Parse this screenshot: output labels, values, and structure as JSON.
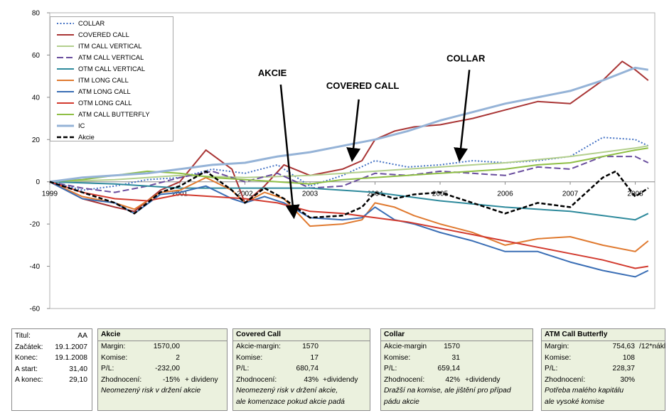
{
  "chart_data": {
    "type": "line",
    "ylim": [
      -60,
      80
    ],
    "yticks": [
      -60,
      -40,
      -20,
      0,
      20,
      40,
      60,
      80
    ],
    "x_range": [
      1999.0,
      2008.3
    ],
    "xtick_labels": [
      "1999",
      "2001",
      "2002",
      "2003",
      "2004",
      "2005",
      "2006",
      "2007",
      "2008"
    ],
    "xtick_values": [
      1999.0,
      2001.0,
      2002.0,
      2003.0,
      2004.0,
      2005.0,
      2006.0,
      2007.0,
      2008.0
    ],
    "grid": false,
    "legend_position": "top-left",
    "series": [
      {
        "name": "COLLAR",
        "color": "#4472c4",
        "dash": "2,2.5",
        "width": 2,
        "points": [
          [
            1999.0,
            0
          ],
          [
            1999.5,
            -4
          ],
          [
            2000.0,
            -2
          ],
          [
            2000.5,
            1
          ],
          [
            2001.0,
            2
          ],
          [
            2001.5,
            6
          ],
          [
            2002.0,
            4
          ],
          [
            2002.5,
            8
          ],
          [
            2003.0,
            -2
          ],
          [
            2003.5,
            3
          ],
          [
            2004.0,
            10
          ],
          [
            2004.5,
            7
          ],
          [
            2005.0,
            8
          ],
          [
            2005.5,
            10
          ],
          [
            2006.0,
            9
          ],
          [
            2006.5,
            10
          ],
          [
            2007.0,
            12
          ],
          [
            2007.5,
            21
          ],
          [
            2008.0,
            20
          ],
          [
            2008.2,
            17
          ]
        ]
      },
      {
        "name": "COVERED CALL",
        "color": "#a93535",
        "dash": "",
        "width": 2,
        "points": [
          [
            1999.0,
            0
          ],
          [
            1999.5,
            -8
          ],
          [
            2000.0,
            -12
          ],
          [
            2000.3,
            -14
          ],
          [
            2000.7,
            -4
          ],
          [
            2001.0,
            0
          ],
          [
            2001.4,
            15
          ],
          [
            2001.8,
            6
          ],
          [
            2002.0,
            -10
          ],
          [
            2002.3,
            -2
          ],
          [
            2002.6,
            8
          ],
          [
            2003.0,
            3
          ],
          [
            2003.5,
            6
          ],
          [
            2003.8,
            10
          ],
          [
            2004.0,
            20
          ],
          [
            2004.3,
            24
          ],
          [
            2004.6,
            26
          ],
          [
            2005.0,
            27
          ],
          [
            2005.5,
            30
          ],
          [
            2006.0,
            34
          ],
          [
            2006.5,
            38
          ],
          [
            2007.0,
            37
          ],
          [
            2007.5,
            48
          ],
          [
            2007.8,
            57
          ],
          [
            2008.0,
            53
          ],
          [
            2008.2,
            48
          ]
        ]
      },
      {
        "name": "ITM CALL VERTICAL",
        "color": "#b3cf8d",
        "dash": "",
        "width": 2,
        "points": [
          [
            1999.0,
            0
          ],
          [
            2000.0,
            1
          ],
          [
            2001.0,
            3
          ],
          [
            2002.0,
            2
          ],
          [
            2003.0,
            3
          ],
          [
            2004.0,
            5
          ],
          [
            2005.0,
            7
          ],
          [
            2006.0,
            9
          ],
          [
            2007.0,
            12
          ],
          [
            2008.0,
            16
          ],
          [
            2008.2,
            17
          ]
        ]
      },
      {
        "name": "ATM CALL VERTICAL",
        "color": "#6a4e9e",
        "dash": "9,4",
        "width": 2,
        "points": [
          [
            1999.0,
            0
          ],
          [
            1999.5,
            -3
          ],
          [
            2000.0,
            -5
          ],
          [
            2000.5,
            -2
          ],
          [
            2001.0,
            2
          ],
          [
            2001.5,
            5
          ],
          [
            2002.0,
            0
          ],
          [
            2002.5,
            4
          ],
          [
            2003.0,
            -3
          ],
          [
            2003.5,
            -2
          ],
          [
            2004.0,
            4
          ],
          [
            2004.5,
            3
          ],
          [
            2005.0,
            5
          ],
          [
            2005.5,
            4
          ],
          [
            2006.0,
            3
          ],
          [
            2006.5,
            7
          ],
          [
            2007.0,
            6
          ],
          [
            2007.5,
            12
          ],
          [
            2008.0,
            12
          ],
          [
            2008.2,
            9
          ]
        ]
      },
      {
        "name": "OTM CALL VERTICAL",
        "color": "#2e8a9c",
        "dash": "",
        "width": 2,
        "points": [
          [
            1999.0,
            0
          ],
          [
            2000.0,
            -1
          ],
          [
            2001.0,
            -3
          ],
          [
            2002.0,
            -3
          ],
          [
            2003.0,
            -3
          ],
          [
            2004.0,
            -5
          ],
          [
            2005.0,
            -9
          ],
          [
            2006.0,
            -12
          ],
          [
            2007.0,
            -14
          ],
          [
            2008.0,
            -18
          ],
          [
            2008.2,
            -15
          ]
        ]
      },
      {
        "name": "ITM LONG CALL",
        "color": "#e07a30",
        "dash": "",
        "width": 2,
        "points": [
          [
            1999.0,
            0
          ],
          [
            1999.5,
            -7
          ],
          [
            2000.0,
            -10
          ],
          [
            2000.3,
            -13
          ],
          [
            2000.7,
            -5
          ],
          [
            2001.0,
            -4
          ],
          [
            2001.4,
            2
          ],
          [
            2001.8,
            -4
          ],
          [
            2002.0,
            -10
          ],
          [
            2002.3,
            -5
          ],
          [
            2002.6,
            -8
          ],
          [
            2003.0,
            -21
          ],
          [
            2003.5,
            -20
          ],
          [
            2003.8,
            -18
          ],
          [
            2004.0,
            -10
          ],
          [
            2004.3,
            -12
          ],
          [
            2004.6,
            -16
          ],
          [
            2005.0,
            -20
          ],
          [
            2005.5,
            -24
          ],
          [
            2006.0,
            -30
          ],
          [
            2006.5,
            -27
          ],
          [
            2007.0,
            -26
          ],
          [
            2007.5,
            -30
          ],
          [
            2008.0,
            -33
          ],
          [
            2008.2,
            -28
          ]
        ]
      },
      {
        "name": "ATM LONG CALL",
        "color": "#3a6eb5",
        "dash": "",
        "width": 2,
        "points": [
          [
            1999.0,
            0
          ],
          [
            1999.5,
            -8
          ],
          [
            2000.0,
            -10
          ],
          [
            2000.3,
            -15
          ],
          [
            2000.7,
            -6
          ],
          [
            2001.0,
            -5
          ],
          [
            2001.4,
            -2
          ],
          [
            2001.8,
            -8
          ],
          [
            2002.0,
            -10
          ],
          [
            2002.3,
            -7
          ],
          [
            2002.6,
            -10
          ],
          [
            2003.0,
            -17
          ],
          [
            2003.5,
            -18
          ],
          [
            2003.8,
            -17
          ],
          [
            2004.0,
            -12
          ],
          [
            2004.3,
            -18
          ],
          [
            2004.6,
            -20
          ],
          [
            2005.0,
            -24
          ],
          [
            2005.5,
            -28
          ],
          [
            2006.0,
            -33
          ],
          [
            2006.5,
            -33
          ],
          [
            2007.0,
            -38
          ],
          [
            2007.5,
            -42
          ],
          [
            2008.0,
            -45
          ],
          [
            2008.2,
            -42
          ]
        ]
      },
      {
        "name": "OTM LONG CALL",
        "color": "#d23a2e",
        "dash": "",
        "width": 2,
        "points": [
          [
            1999.0,
            0
          ],
          [
            1999.5,
            -5
          ],
          [
            2000.0,
            -8
          ],
          [
            2000.5,
            -9
          ],
          [
            2001.0,
            -6
          ],
          [
            2001.5,
            -7
          ],
          [
            2002.0,
            -8
          ],
          [
            2002.5,
            -10
          ],
          [
            2003.0,
            -14
          ],
          [
            2003.5,
            -15
          ],
          [
            2004.0,
            -17
          ],
          [
            2004.5,
            -19
          ],
          [
            2005.0,
            -22
          ],
          [
            2005.5,
            -25
          ],
          [
            2006.0,
            -28
          ],
          [
            2006.5,
            -31
          ],
          [
            2007.0,
            -34
          ],
          [
            2007.5,
            -37
          ],
          [
            2008.0,
            -41
          ],
          [
            2008.2,
            -40
          ]
        ]
      },
      {
        "name": "ATM CALL BUTTERFLY",
        "color": "#8fbf45",
        "dash": "",
        "width": 2,
        "points": [
          [
            1999.0,
            0
          ],
          [
            1999.5,
            1
          ],
          [
            2000.0,
            3
          ],
          [
            2000.5,
            5
          ],
          [
            2001.0,
            4
          ],
          [
            2001.5,
            2
          ],
          [
            2002.0,
            1
          ],
          [
            2002.5,
            0
          ],
          [
            2003.0,
            -1
          ],
          [
            2003.5,
            1
          ],
          [
            2004.0,
            2
          ],
          [
            2004.5,
            3
          ],
          [
            2005.0,
            4
          ],
          [
            2005.5,
            5
          ],
          [
            2006.0,
            6
          ],
          [
            2006.5,
            8
          ],
          [
            2007.0,
            9
          ],
          [
            2007.5,
            12
          ],
          [
            2008.0,
            15
          ],
          [
            2008.2,
            16
          ]
        ]
      },
      {
        "name": "IC",
        "color": "#95b3d7",
        "dash": "",
        "width": 3,
        "points": [
          [
            1999.0,
            0
          ],
          [
            1999.5,
            2
          ],
          [
            2000.0,
            3
          ],
          [
            2000.5,
            4
          ],
          [
            2001.0,
            6
          ],
          [
            2001.5,
            8
          ],
          [
            2002.0,
            9
          ],
          [
            2002.5,
            12
          ],
          [
            2003.0,
            14
          ],
          [
            2003.5,
            17
          ],
          [
            2004.0,
            20
          ],
          [
            2004.5,
            24
          ],
          [
            2005.0,
            29
          ],
          [
            2005.5,
            33
          ],
          [
            2006.0,
            37
          ],
          [
            2006.5,
            40
          ],
          [
            2007.0,
            43
          ],
          [
            2007.5,
            48
          ],
          [
            2008.0,
            54
          ],
          [
            2008.2,
            53
          ]
        ]
      },
      {
        "name": "Akcie",
        "color": "#000000",
        "dash": "6,3",
        "width": 2.5,
        "points": [
          [
            1999.0,
            0
          ],
          [
            1999.5,
            -5
          ],
          [
            2000.0,
            -10
          ],
          [
            2000.3,
            -15
          ],
          [
            2000.7,
            -5
          ],
          [
            2001.0,
            -2
          ],
          [
            2001.4,
            5
          ],
          [
            2001.8,
            -4
          ],
          [
            2002.0,
            -10
          ],
          [
            2002.3,
            -3
          ],
          [
            2002.6,
            -8
          ],
          [
            2003.0,
            -17
          ],
          [
            2003.5,
            -16
          ],
          [
            2003.8,
            -12
          ],
          [
            2004.0,
            -5
          ],
          [
            2004.3,
            -8
          ],
          [
            2004.6,
            -6
          ],
          [
            2005.0,
            -5
          ],
          [
            2005.5,
            -10
          ],
          [
            2006.0,
            -15
          ],
          [
            2006.5,
            -10
          ],
          [
            2007.0,
            -12
          ],
          [
            2007.5,
            2
          ],
          [
            2007.7,
            5
          ],
          [
            2008.0,
            -7
          ],
          [
            2008.2,
            -3
          ]
        ]
      }
    ],
    "annotations": [
      {
        "text": "AKCIE",
        "label_x": 2002.2,
        "label_y": 50,
        "arrow_from": [
          2002.55,
          46
        ],
        "arrow_to": [
          2002.75,
          -16
        ]
      },
      {
        "text": "COVERED CALL",
        "label_x": 2003.25,
        "label_y": 44,
        "arrow_from": [
          2003.75,
          39
        ],
        "arrow_to": [
          2003.65,
          11
        ]
      },
      {
        "text": "COLLAR",
        "label_x": 2005.1,
        "label_y": 57,
        "arrow_from": [
          2005.45,
          53
        ],
        "arrow_to": [
          2005.3,
          11
        ]
      }
    ]
  },
  "info_box": {
    "rows": [
      {
        "label": "Titul:",
        "value": "AA"
      },
      {
        "label": "Začátek:",
        "value": "19.1.2007"
      },
      {
        "label": "Konec:",
        "value": "19.1.2008"
      },
      {
        "label": "A start:",
        "value": "31,40"
      },
      {
        "label": "A konec:",
        "value": "29,10"
      }
    ]
  },
  "panels": [
    {
      "title": "Akcie",
      "rows": [
        {
          "label": "Margin:",
          "value": "1570,00",
          "extra": ""
        },
        {
          "label": "Komise:",
          "value": "2",
          "extra": ""
        },
        {
          "label": "P/L:",
          "value": "-232,00",
          "extra": ""
        },
        {
          "label": "Zhodnocení:",
          "value": "-15%",
          "extra": "+ divideny"
        }
      ],
      "notes": [
        "Neomezený risk v držení akcie"
      ]
    },
    {
      "title": "Covered Call",
      "rows": [
        {
          "label": "Akcie-margin:",
          "value": "1570",
          "extra": ""
        },
        {
          "label": "Komise:",
          "value": "17",
          "extra": ""
        },
        {
          "label": "P/L:",
          "value": "680,74",
          "extra": ""
        },
        {
          "label": "Zhodnocení:",
          "value": "43%",
          "extra": "+dividendy"
        }
      ],
      "notes": [
        "Neomezený risk v držení akcie,",
        "ale komenzace pokud akcie padá"
      ]
    },
    {
      "title": "Collar",
      "rows": [
        {
          "label": "Akcie-margin",
          "value": "1570",
          "extra": ""
        },
        {
          "label": "Komise:",
          "value": "31",
          "extra": ""
        },
        {
          "label": "P/L:",
          "value": "659,14",
          "extra": ""
        },
        {
          "label": "Zhodnocení:",
          "value": "42%",
          "extra": "+dividendy"
        }
      ],
      "notes": [
        "Dražší na komise, ale jištění pro případ",
        "pádu akcie"
      ]
    },
    {
      "title": "ATM Call Butterfly",
      "rows": [
        {
          "label": "Margin:",
          "value": "754,63",
          "extra": "/12*nákl"
        },
        {
          "label": "Komise:",
          "value": "108",
          "extra": ""
        },
        {
          "label": "P/L:",
          "value": "228,37",
          "extra": ""
        },
        {
          "label": "Zhodnocení:",
          "value": "30%",
          "extra": ""
        }
      ],
      "notes": [
        "Potřeba malého kapitálu",
        "ale vysoké komise"
      ]
    }
  ]
}
